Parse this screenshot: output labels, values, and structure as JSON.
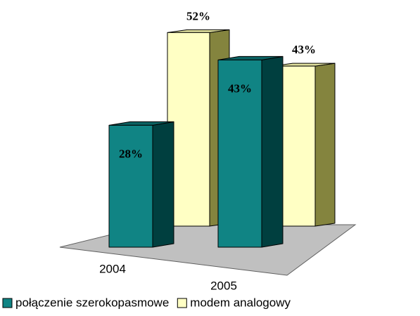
{
  "chart_data": {
    "type": "bar3d",
    "categories": [
      "2004",
      "2005"
    ],
    "series": [
      {
        "name": "połączenie szerokopasmowe",
        "color": "#108484",
        "side_color": "#003f3f",
        "top_color": "#0b6262",
        "values": [
          28,
          43
        ],
        "value_labels": [
          "28%",
          "43%"
        ]
      },
      {
        "name": "modem analogowy",
        "color": "#ffffc4",
        "side_color": "#84843e",
        "top_color": "#dede9c",
        "values": [
          52,
          43
        ],
        "value_labels": [
          "52%",
          "43%"
        ]
      }
    ],
    "legend": "bottom"
  }
}
